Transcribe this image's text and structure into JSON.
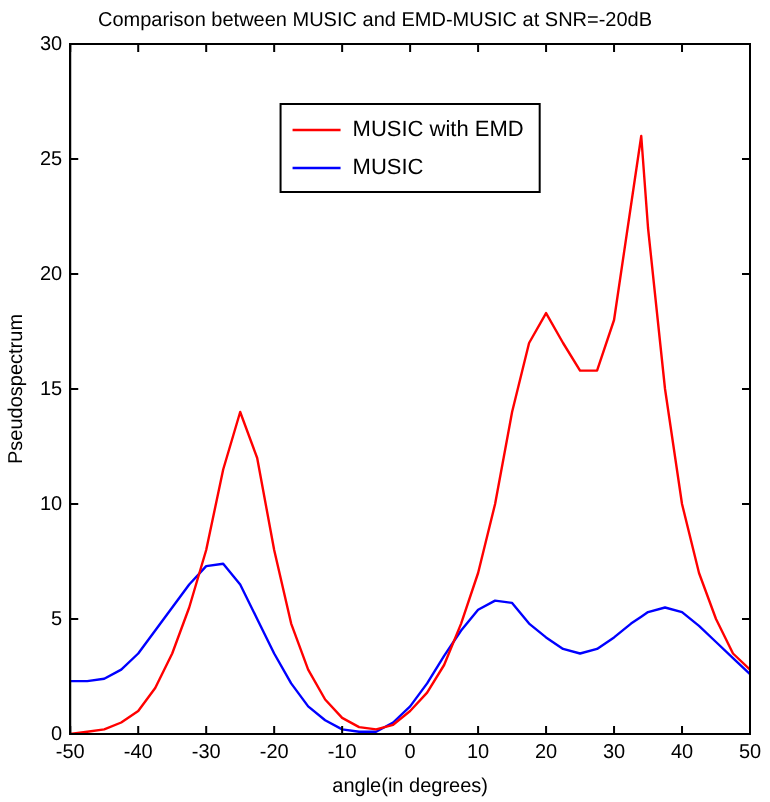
{
  "chart_data": {
    "type": "line",
    "title": "Comparison between MUSIC and EMD-MUSIC at SNR=-20dB",
    "xlabel": "angle(in degrees)",
    "ylabel": "Pseudospectrum",
    "x": [
      -50,
      -47.5,
      -45,
      -42.5,
      -40,
      -37.5,
      -35,
      -32.5,
      -30,
      -27.5,
      -25,
      -22.5,
      -20,
      -17.5,
      -15,
      -12.5,
      -10,
      -7.5,
      -5,
      -2.5,
      0,
      2.5,
      5,
      7.5,
      10,
      12.5,
      15,
      17.5,
      20,
      22.5,
      25,
      27.5,
      30,
      32.5,
      34,
      35,
      37.5,
      40,
      42.5,
      45,
      47.5,
      50
    ],
    "series": [
      {
        "name": "MUSIC with EMD",
        "color": "#ff0000",
        "values": [
          0,
          0.1,
          0.2,
          0.5,
          1,
          2,
          3.5,
          5.5,
          8,
          11.5,
          14,
          12,
          8,
          4.8,
          2.8,
          1.5,
          0.7,
          0.3,
          0.2,
          0.4,
          1,
          1.8,
          3,
          4.8,
          7,
          10,
          14,
          17,
          18.3,
          17,
          15.8,
          15.8,
          18,
          23,
          26,
          22,
          15,
          10,
          7,
          5,
          3.5,
          2.8
        ]
      },
      {
        "name": "MUSIC",
        "color": "#0000ff",
        "values": [
          2.3,
          2.3,
          2.4,
          2.8,
          3.5,
          4.5,
          5.5,
          6.5,
          7.3,
          7.4,
          6.5,
          5,
          3.5,
          2.2,
          1.2,
          0.6,
          0.2,
          0.1,
          0.1,
          0.5,
          1.2,
          2.2,
          3.4,
          4.5,
          5.4,
          5.8,
          5.7,
          4.8,
          4.2,
          3.7,
          3.5,
          3.7,
          4.2,
          4.8,
          5.1,
          5.3,
          5.5,
          5.3,
          4.7,
          4,
          3.3,
          2.6
        ]
      }
    ],
    "xlim": [
      -50,
      50
    ],
    "xticks": [
      -50,
      -40,
      -30,
      -20,
      -10,
      0,
      10,
      20,
      30,
      40,
      50
    ],
    "ylim": [
      0,
      30
    ],
    "yticks": [
      0,
      5,
      10,
      15,
      20,
      25,
      30
    ],
    "grid": false,
    "legend": "top",
    "marker": "none",
    "line_style": "solid"
  }
}
